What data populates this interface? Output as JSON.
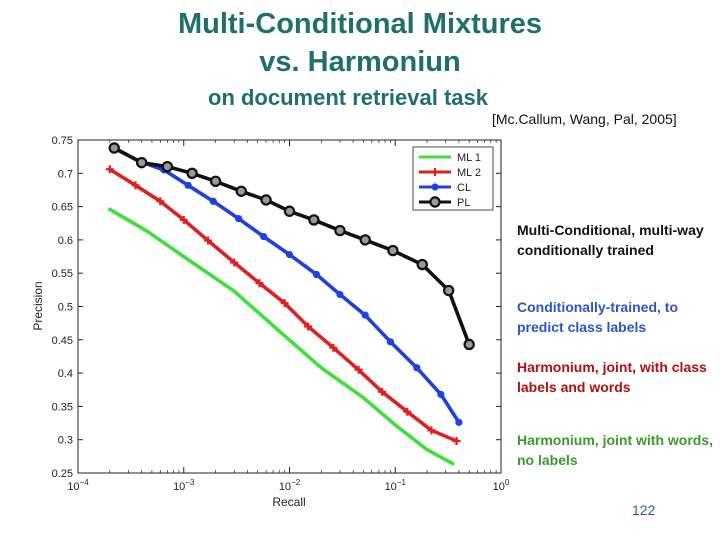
{
  "slide": {
    "title_line1": "Multi-Conditional Mixtures",
    "title_line2": "vs. Harmoniun",
    "subtitle": "on document retrieval task",
    "citation": "[Mc.Callum, Wang, Pal, 2005]",
    "page_number": "122"
  },
  "annotations": {
    "pl": "Multi-Conditional, multi-way conditionally trained",
    "cl": "Conditionally-trained, to predict class labels",
    "ml2": "Harmonium, joint, with class labels and words",
    "ml1": "Harmonium, joint with words, no labels"
  },
  "colors": {
    "title": "#1f6f6a",
    "ml1": "#3ee03a",
    "ml2": "#e02020",
    "cl": "#2040e0",
    "pl": "#111111"
  },
  "chart_data": {
    "type": "line",
    "xlabel": "Recall",
    "ylabel": "Precision",
    "x_scale": "log",
    "xlim": [
      0.0001,
      1
    ],
    "ylim": [
      0.25,
      0.75
    ],
    "x_ticks": [
      {
        "value": 0.0001,
        "base": "10",
        "exp": "−4"
      },
      {
        "value": 0.001,
        "base": "10",
        "exp": "−3"
      },
      {
        "value": 0.01,
        "base": "10",
        "exp": "−2"
      },
      {
        "value": 0.1,
        "base": "10",
        "exp": "−1"
      },
      {
        "value": 1,
        "base": "10",
        "exp": "0"
      }
    ],
    "y_ticks": [
      "0.25",
      "0.3",
      "0.35",
      "0.4",
      "0.45",
      "0.5",
      "0.55",
      "0.6",
      "0.65",
      "0.7",
      "0.75"
    ],
    "legend_position": "top-right",
    "series": [
      {
        "key": "ml1",
        "name": "ML 1",
        "marker": "none",
        "x": [
          0.0002,
          0.00045,
          0.001,
          0.003,
          0.008,
          0.02,
          0.05,
          0.1,
          0.2,
          0.35
        ],
        "y": [
          0.646,
          0.613,
          0.575,
          0.523,
          0.463,
          0.408,
          0.363,
          0.322,
          0.285,
          0.264
        ]
      },
      {
        "key": "ml2",
        "name": "ML 2",
        "marker": "plus",
        "x": [
          0.0002,
          0.00035,
          0.0006,
          0.001,
          0.0017,
          0.003,
          0.0052,
          0.009,
          0.015,
          0.026,
          0.045,
          0.075,
          0.13,
          0.22,
          0.38
        ],
        "y": [
          0.706,
          0.682,
          0.658,
          0.63,
          0.599,
          0.566,
          0.535,
          0.505,
          0.47,
          0.438,
          0.405,
          0.372,
          0.342,
          0.314,
          0.298
        ]
      },
      {
        "key": "cl",
        "name": "CL",
        "marker": "dot",
        "x": [
          0.00022,
          0.00038,
          0.00065,
          0.0011,
          0.0019,
          0.0033,
          0.0057,
          0.01,
          0.018,
          0.03,
          0.052,
          0.09,
          0.16,
          0.27,
          0.4
        ],
        "y": [
          0.738,
          0.718,
          0.705,
          0.682,
          0.658,
          0.632,
          0.605,
          0.578,
          0.548,
          0.518,
          0.487,
          0.447,
          0.408,
          0.368,
          0.326
        ]
      },
      {
        "key": "pl",
        "name": "PL",
        "marker": "circle",
        "x": [
          0.00022,
          0.0004,
          0.0007,
          0.0012,
          0.002,
          0.0035,
          0.006,
          0.01,
          0.017,
          0.03,
          0.052,
          0.095,
          0.18,
          0.32,
          0.5
        ],
        "y": [
          0.738,
          0.716,
          0.71,
          0.7,
          0.688,
          0.673,
          0.66,
          0.643,
          0.63,
          0.614,
          0.6,
          0.584,
          0.563,
          0.524,
          0.443
        ]
      }
    ]
  }
}
